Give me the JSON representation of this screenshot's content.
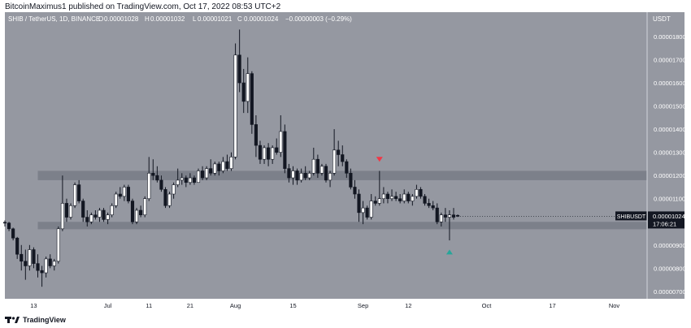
{
  "header": {
    "publish_line": "BitcoinMaximus1 published on TradingView.com, Oct 17, 2022 08:53 UTC+2"
  },
  "footer": {
    "brand": "TradingView",
    "logo_icon": "tradingview-logo-icon"
  },
  "colors": {
    "background": "#9598a1",
    "frame": "#ffffff",
    "candle_up": "#ffffff",
    "candle_down": "#131722",
    "zone": "#787b86",
    "red_arrow": "#f23645",
    "green_arrow": "#26a69a",
    "price_badge": "#131722"
  },
  "chart_data": {
    "type": "candlestick",
    "symbol_line": "SHIB / TetherUS, 1D, BINANCE",
    "ohlc": {
      "o_label": "O",
      "o": "0.00001028",
      "h_label": "H",
      "h": "0.00001032",
      "l_label": "L",
      "l": "0.00001021",
      "c_label": "C",
      "c": "0.00001024",
      "change": "−0.00000003 (−0.29%)"
    },
    "currency_label": "USDT",
    "y_ticks": [
      "0.00000700",
      "0.00000800",
      "0.00000900",
      "0.00001000",
      "0.00001100",
      "0.00001200",
      "0.00001300",
      "0.00001400",
      "0.00001500",
      "0.00001600",
      "0.00001700",
      "0.00001800"
    ],
    "y_tick_values": [
      7e-06,
      8e-06,
      9e-06,
      1e-05,
      1.1e-05,
      1.2e-05,
      1.3e-05,
      1.4e-05,
      1.5e-05,
      1.6e-05,
      1.7e-05,
      1.8e-05
    ],
    "ylim": [
      6.68e-06,
      1.905e-05
    ],
    "x_ticks": [
      {
        "label": "13",
        "date": "2022-06-13"
      },
      {
        "label": "Jul",
        "date": "2022-07-01"
      },
      {
        "label": "11",
        "date": "2022-07-11"
      },
      {
        "label": "21",
        "date": "2022-07-21"
      },
      {
        "label": "Aug",
        "date": "2022-08-01"
      },
      {
        "label": "15",
        "date": "2022-08-15"
      },
      {
        "label": "Sep",
        "date": "2022-09-01"
      },
      {
        "label": "12",
        "date": "2022-09-12"
      },
      {
        "label": "Oct",
        "date": "2022-10-01"
      },
      {
        "label": "17",
        "date": "2022-10-17"
      },
      {
        "label": "Nov",
        "date": "2022-11-01"
      }
    ],
    "xlim": [
      "2022-06-06",
      "2022-11-09"
    ],
    "first_candle_date": "2022-06-06",
    "candles": [
      [
        9.98e-06,
        1.006e-05,
        9.8e-06,
        9.95e-06
      ],
      [
        9.95e-06,
        1e-05,
        9.6e-06,
        9.7e-06
      ],
      [
        9.7e-06,
        9.75e-06,
        9.2e-06,
        9.3e-06
      ],
      [
        9.3e-06,
        9.35e-06,
        8.4e-06,
        8.6e-06
      ],
      [
        8.6e-06,
        9e-06,
        7.9e-06,
        8.3e-06
      ],
      [
        8.3e-06,
        8.8e-06,
        7.5e-06,
        8.1e-06
      ],
      [
        8.1e-06,
        9e-06,
        7.9e-06,
        8.8e-06
      ],
      [
        8.8e-06,
        8.9e-06,
        8e-06,
        8.2e-06
      ],
      [
        8.2e-06,
        8.6e-06,
        7.6e-06,
        7.9e-06
      ],
      [
        7.9e-06,
        8.1e-06,
        7.2e-06,
        7.8e-06
      ],
      [
        7.8e-06,
        8.5e-06,
        7.6e-06,
        8.4e-06
      ],
      [
        8.4e-06,
        8.6e-06,
        8e-06,
        8.1e-06
      ],
      [
        8.1e-06,
        8.4e-06,
        7.9e-06,
        8.3e-06
      ],
      [
        8.3e-06,
        9.8e-06,
        8.2e-06,
        9.7e-06
      ],
      [
        9.7e-06,
        1.2e-05,
        9.6e-06,
        1.08e-05
      ],
      [
        1.08e-05,
        1.1e-05,
        1e-05,
        1.02e-05
      ],
      [
        1.02e-05,
        1.08e-05,
        1.01e-05,
        1.07e-05
      ],
      [
        1.07e-05,
        1.17e-05,
        1.06e-05,
        1.16e-05
      ],
      [
        1.16e-05,
        1.18e-05,
        1.08e-05,
        1.09e-05
      ],
      [
        1.09e-05,
        1.1e-05,
        1e-05,
        1.02e-05
      ],
      [
        1.02e-05,
        1.05e-05,
        9.8e-06,
        1e-05
      ],
      [
        1e-05,
        1.04e-05,
        9.9e-06,
        1.03e-05
      ],
      [
        1.03e-05,
        1.05e-05,
        1.01e-05,
        1.02e-05
      ],
      [
        1.02e-05,
        1.06e-05,
        1e-05,
        1.05e-05
      ],
      [
        1.05e-05,
        1.06e-05,
        1e-05,
        1.01e-05
      ],
      [
        1.01e-05,
        1.04e-05,
        9.9e-06,
        1.03e-05
      ],
      [
        1.03e-05,
        1.08e-05,
        1.02e-05,
        1.07e-05
      ],
      [
        1.07e-05,
        1.13e-05,
        1.06e-05,
        1.12e-05
      ],
      [
        1.12e-05,
        1.15e-05,
        1.1e-05,
        1.11e-05
      ],
      [
        1.11e-05,
        1.16e-05,
        1.09e-05,
        1.15e-05
      ],
      [
        1.15e-05,
        1.16e-05,
        1.08e-05,
        1.09e-05
      ],
      [
        1.09e-05,
        1.1e-05,
        9.9e-06,
        1e-05
      ],
      [
        1e-05,
        1.06e-05,
        9.9e-06,
        1.05e-05
      ],
      [
        1.05e-05,
        1.07e-05,
        1.02e-05,
        1.03e-05
      ],
      [
        1.03e-05,
        1.11e-05,
        1.02e-05,
        1.1e-05
      ],
      [
        1.1e-05,
        1.28e-05,
        1.09e-05,
        1.21e-05
      ],
      [
        1.21e-05,
        1.27e-05,
        1.18e-05,
        1.2e-05
      ],
      [
        1.2e-05,
        1.24e-05,
        1.17e-05,
        1.18e-05
      ],
      [
        1.18e-05,
        1.2e-05,
        1.13e-05,
        1.14e-05
      ],
      [
        1.14e-05,
        1.15e-05,
        1.06e-05,
        1.07e-05
      ],
      [
        1.07e-05,
        1.13e-05,
        1.06e-05,
        1.12e-05
      ],
      [
        1.12e-05,
        1.17e-05,
        1.1e-05,
        1.16e-05
      ],
      [
        1.16e-05,
        1.23e-05,
        1.15e-05,
        1.18e-05
      ],
      [
        1.18e-05,
        1.21e-05,
        1.16e-05,
        1.19e-05
      ],
      [
        1.19e-05,
        1.2e-05,
        1.15e-05,
        1.17e-05
      ],
      [
        1.17e-05,
        1.21e-05,
        1.16e-05,
        1.19e-05
      ],
      [
        1.19e-05,
        1.2e-05,
        1.16e-05,
        1.17e-05
      ],
      [
        1.17e-05,
        1.23e-05,
        1.17e-05,
        1.22e-05
      ],
      [
        1.22e-05,
        1.24e-05,
        1.18e-05,
        1.19e-05
      ],
      [
        1.19e-05,
        1.24e-05,
        1.18e-05,
        1.23e-05
      ],
      [
        1.23e-05,
        1.27e-05,
        1.2e-05,
        1.21e-05
      ],
      [
        1.21e-05,
        1.26e-05,
        1.2e-05,
        1.25e-05
      ],
      [
        1.25e-05,
        1.26e-05,
        1.2e-05,
        1.22e-05
      ],
      [
        1.22e-05,
        1.28e-05,
        1.21e-05,
        1.26e-05
      ],
      [
        1.26e-05,
        1.29e-05,
        1.22e-05,
        1.23e-05
      ],
      [
        1.23e-05,
        1.3e-05,
        1.22e-05,
        1.28e-05
      ],
      [
        1.28e-05,
        1.77e-05,
        1.27e-05,
        1.72e-05
      ],
      [
        1.72e-05,
        1.83e-05,
        1.56e-05,
        1.6e-05
      ],
      [
        1.6e-05,
        1.66e-05,
        1.47e-05,
        1.52e-05
      ],
      [
        1.52e-05,
        1.71e-05,
        1.47e-05,
        1.64e-05
      ],
      [
        1.64e-05,
        1.65e-05,
        1.38e-05,
        1.42e-05
      ],
      [
        1.42e-05,
        1.46e-05,
        1.28e-05,
        1.33e-05
      ],
      [
        1.33e-05,
        1.35e-05,
        1.25e-05,
        1.27e-05
      ],
      [
        1.27e-05,
        1.33e-05,
        1.25e-05,
        1.32e-05
      ],
      [
        1.32e-05,
        1.34e-05,
        1.24e-05,
        1.27e-05
      ],
      [
        1.27e-05,
        1.33e-05,
        1.25e-05,
        1.32e-05
      ],
      [
        1.32e-05,
        1.36e-05,
        1.29e-05,
        1.3e-05
      ],
      [
        1.3e-05,
        1.46e-05,
        1.28e-05,
        1.39e-05
      ],
      [
        1.39e-05,
        1.42e-05,
        1.21e-05,
        1.23e-05
      ],
      [
        1.23e-05,
        1.25e-05,
        1.17e-05,
        1.19e-05
      ],
      [
        1.19e-05,
        1.24e-05,
        1.16e-05,
        1.22e-05
      ],
      [
        1.22e-05,
        1.23e-05,
        1.16e-05,
        1.18e-05
      ],
      [
        1.18e-05,
        1.23e-05,
        1.17e-05,
        1.21e-05
      ],
      [
        1.21e-05,
        1.24e-05,
        1.18e-05,
        1.19e-05
      ],
      [
        1.19e-05,
        1.22e-05,
        1.18e-05,
        1.21e-05
      ],
      [
        1.21e-05,
        1.32e-05,
        1.2e-05,
        1.27e-05
      ],
      [
        1.27e-05,
        1.29e-05,
        1.19e-05,
        1.21e-05
      ],
      [
        1.21e-05,
        1.25e-05,
        1.2e-05,
        1.24e-05
      ],
      [
        1.24e-05,
        1.25e-05,
        1.17e-05,
        1.18e-05
      ],
      [
        1.18e-05,
        1.22e-05,
        1.15e-05,
        1.21e-05
      ],
      [
        1.21e-05,
        1.4e-05,
        1.2e-05,
        1.31e-05
      ],
      [
        1.31e-05,
        1.35e-05,
        1.24e-05,
        1.29e-05
      ],
      [
        1.29e-05,
        1.33e-05,
        1.24e-05,
        1.26e-05
      ],
      [
        1.26e-05,
        1.27e-05,
        1.19e-05,
        1.21e-05
      ],
      [
        1.21e-05,
        1.23e-05,
        1.14e-05,
        1.15e-05
      ],
      [
        1.15e-05,
        1.18e-05,
        1.1e-05,
        1.12e-05
      ],
      [
        1.12e-05,
        1.14e-05,
        1e-05,
        1.04e-05
      ],
      [
        1.04e-05,
        1.09e-05,
        9.9e-06,
        1.06e-05
      ],
      [
        1.06e-05,
        1.07e-05,
        1.01e-05,
        1.02e-05
      ],
      [
        1.02e-05,
        1.12e-05,
        1.01e-05,
        1.09e-05
      ],
      [
        1.09e-05,
        1.11e-05,
        1.07e-05,
        1.08e-05
      ],
      [
        1.08e-05,
        1.22e-05,
        1.07e-05,
        1.1e-05
      ],
      [
        1.1e-05,
        1.15e-05,
        1.08e-05,
        1.12e-05
      ],
      [
        1.12e-05,
        1.13e-05,
        1.08e-05,
        1.1e-05
      ],
      [
        1.1e-05,
        1.14e-05,
        1.09e-05,
        1.11e-05
      ],
      [
        1.11e-05,
        1.13e-05,
        1.09e-05,
        1.1e-05
      ],
      [
        1.1e-05,
        1.12e-05,
        1.08e-05,
        1.09e-05
      ],
      [
        1.09e-05,
        1.14e-05,
        1.08e-05,
        1.12e-05
      ],
      [
        1.12e-05,
        1.13e-05,
        1.08e-05,
        1.09e-05
      ],
      [
        1.09e-05,
        1.12e-05,
        1.07e-05,
        1.11e-05
      ],
      [
        1.11e-05,
        1.16e-05,
        1.1e-05,
        1.14e-05
      ],
      [
        1.14e-05,
        1.15e-05,
        1.1e-05,
        1.11e-05
      ],
      [
        1.11e-05,
        1.12e-05,
        1.07e-05,
        1.08e-05
      ],
      [
        1.08e-05,
        1.1e-05,
        1.06e-05,
        1.07e-05
      ],
      [
        1.07e-05,
        1.09e-05,
        1.05e-05,
        1.06e-05
      ],
      [
        1.06e-05,
        1.08e-05,
        9.9e-06,
        1e-05
      ],
      [
        1e-05,
        1.04e-05,
        9.8e-06,
        1.03e-05
      ],
      [
        1.03e-05,
        1.06e-05,
        1e-05,
        1.02e-05
      ],
      [
        1.02e-05,
        1.05e-05,
        9.2e-06,
        1.03e-05
      ],
      [
        1.03e-05,
        1.06e-05,
        1.01e-05,
        1.02e-05
      ],
      [
        1.028e-05,
        1.032e-05,
        1.021e-05,
        1.024e-05
      ]
    ],
    "zones": [
      {
        "from": 1.18e-05,
        "to": 1.22e-05
      },
      {
        "from": 9.68e-06,
        "to": 1e-05
      }
    ],
    "markers": [
      {
        "kind": "red-arrow-down",
        "candle": 91,
        "value": 1.27e-05
      },
      {
        "kind": "green-arrow-up",
        "candle": 108,
        "value": 8.7e-06
      }
    ],
    "last_price": {
      "symbol": "SHIBUSDT",
      "value": 1.024e-05,
      "price_text": "0.00001024",
      "countdown": "17:06:21"
    }
  }
}
